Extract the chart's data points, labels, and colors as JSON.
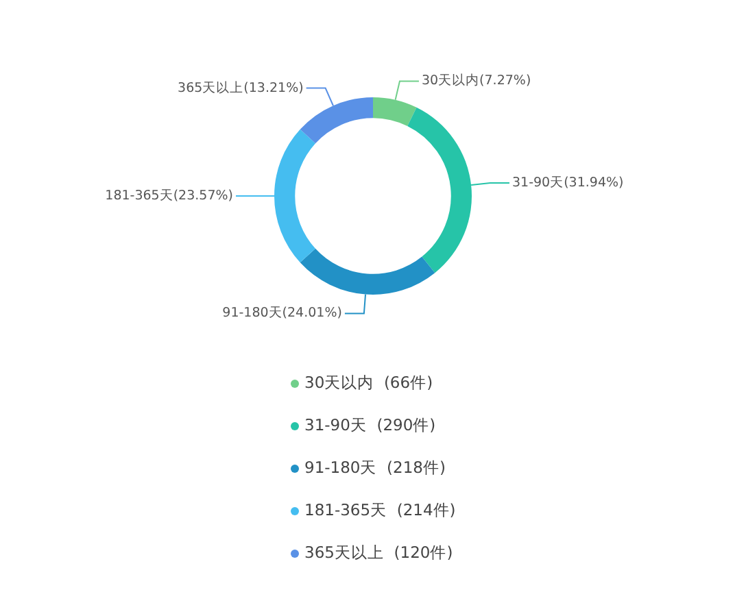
{
  "chart_data": {
    "type": "donut",
    "categories": [
      "30天以内  (66件)",
      "31-90天  (290件)",
      "91-180天  (218件)",
      "181-365天  (214件)",
      "365天以上  (120件)"
    ],
    "values": [
      7.27,
      31.94,
      24.01,
      23.57,
      13.21
    ],
    "colors": [
      "#70cf8a",
      "#26c4a8",
      "#2291c6",
      "#45bdf0",
      "#5a91e6"
    ],
    "value_labels": [
      "30天以内(7.27%)",
      "31-90天(31.94%)",
      "91-180天(24.01%)",
      "181-365天(23.57%)",
      "365天以上(13.21%)"
    ],
    "legend": "bottom"
  }
}
